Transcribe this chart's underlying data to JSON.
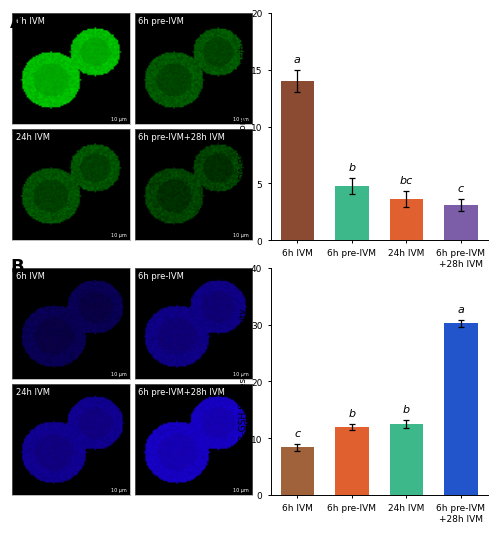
{
  "panel_A": {
    "categories": [
      "6h IVM",
      "6h pre-IVM",
      "24h IVM",
      "6h pre-IVM\n+28h IVM"
    ],
    "values": [
      14.0,
      4.8,
      3.6,
      3.1
    ],
    "errors": [
      1.0,
      0.7,
      0.7,
      0.5
    ],
    "bar_colors": [
      "#8B4A32",
      "#3CB88A",
      "#E06030",
      "#7B5EA7"
    ],
    "ylabel": "H2DCF-DA-ROS fluorescence intensity",
    "ylim": [
      0,
      20
    ],
    "yticks": [
      0,
      5,
      10,
      15,
      20
    ],
    "superscripts": [
      "a",
      "b",
      "bc",
      "c"
    ],
    "img_labels": [
      "6h IVM",
      "6h pre-IVM",
      "24h IVM",
      "6h pre-IVM+28h IVM"
    ],
    "green_brightness": [
      0.9,
      0.42,
      0.4,
      0.32
    ],
    "oocyte_count": [
      2,
      2,
      2,
      2
    ]
  },
  "panel_B": {
    "categories": [
      "6h IVM",
      "6h pre-IVM",
      "24h IVM",
      "6h pre-IVM\n+28h IVM"
    ],
    "values": [
      8.4,
      12.0,
      12.5,
      30.2
    ],
    "errors": [
      0.55,
      0.45,
      0.75,
      0.65
    ],
    "bar_colors": [
      "#A0623A",
      "#E06030",
      "#3CB88A",
      "#2255CC"
    ],
    "ylabel": "MCB-GSH fluorescence intensity",
    "ylim": [
      0,
      40
    ],
    "yticks": [
      0,
      10,
      20,
      30,
      40
    ],
    "superscripts": [
      "c",
      "b",
      "b",
      "a"
    ],
    "img_labels": [
      "6h IVM",
      "6h pre-IVM",
      "24h IVM",
      "6h pre-IVM+28h IVM"
    ],
    "blue_brightness": [
      0.38,
      0.6,
      0.65,
      0.88
    ],
    "oocyte_count": [
      2,
      2,
      2,
      2
    ]
  },
  "panel_label_fontsize": 13,
  "img_label_fontsize": 6,
  "axis_fontsize": 6.5,
  "ylabel_fontsize": 6.5,
  "superscript_fontsize": 8,
  "background_color": "#ffffff"
}
